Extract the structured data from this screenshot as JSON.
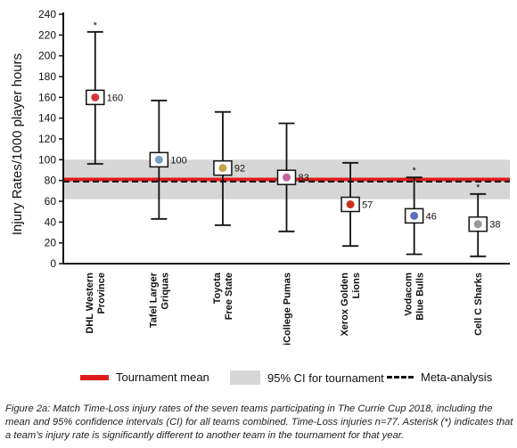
{
  "chart_data": {
    "type": "error-bar",
    "ylabel": "Injury Rates/1000 player hours",
    "ylim": [
      0,
      240
    ],
    "yticks": [
      0,
      20,
      40,
      60,
      80,
      100,
      120,
      140,
      160,
      180,
      200,
      220,
      240
    ],
    "categories": [
      [
        "DHL Western",
        "Province"
      ],
      [
        "Tafel Larger",
        "Griquas"
      ],
      [
        "Toyota",
        "Free State"
      ],
      [
        "iCollege Pumas"
      ],
      [
        "Xerox Golden",
        "Lions"
      ],
      [
        "Vodacom",
        "Blue Bulls"
      ],
      [
        "Cell C Sharks"
      ]
    ],
    "values": [
      160,
      100,
      92,
      83,
      57,
      46,
      38
    ],
    "value_labels": [
      "160",
      "100",
      "92",
      "83",
      "57",
      "46",
      "38"
    ],
    "ci_lower": [
      96,
      43,
      37,
      31,
      17,
      9,
      7
    ],
    "ci_upper": [
      223,
      157,
      146,
      135,
      97,
      83,
      67
    ],
    "significant": [
      true,
      false,
      false,
      false,
      false,
      true,
      true
    ],
    "significance_marker": "*",
    "tournament_mean": 81,
    "tournament_ci": [
      62,
      100
    ],
    "meta_analysis": 79,
    "legend": {
      "mean": "Tournament mean",
      "ci": "95% CI for tournament",
      "meta": "Meta-analysis"
    },
    "colors": {
      "mean": "#e01b1b",
      "ci_band": "#d6d6d6",
      "axis": "#111111",
      "logos": [
        "#d4383a",
        "#7a9cc6",
        "#c9a24a",
        "#c2649a",
        "#c8321f",
        "#5a6fbf",
        "#999999"
      ]
    }
  },
  "caption": "Figure 2a: Match Time-Loss injury rates of the seven teams participating in The Currie Cup 2018, including the mean and 95% confidence intervals (CI) for all teams combined. Time-Loss injuries n=77. Asterisk (*) indicates that a team’s injury rate is significantly different to another team in the tournament for that year."
}
